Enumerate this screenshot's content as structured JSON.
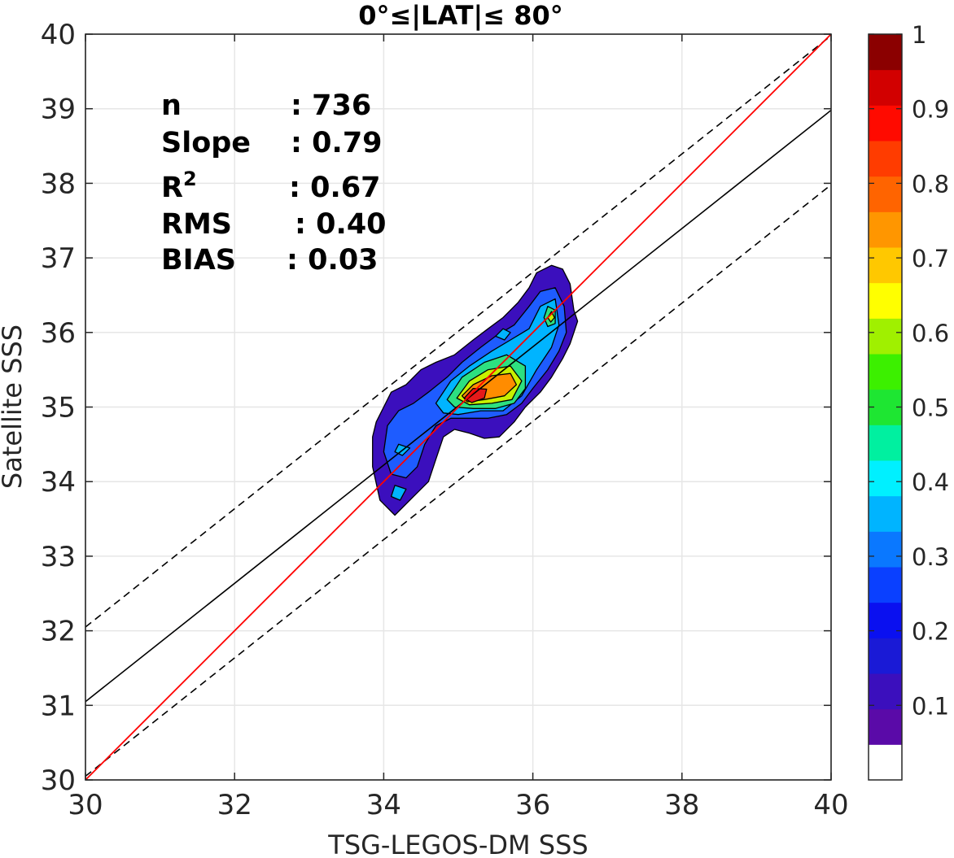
{
  "chart_data": {
    "type": "contourf",
    "title": "0°≤|LAT|≤ 80°",
    "xlabel": "TSG-LEGOS-DM SSS",
    "ylabel": "Satellite SSS",
    "xlim": [
      30,
      40
    ],
    "ylim": [
      30,
      40
    ],
    "xticks": [
      "30",
      "32",
      "34",
      "36",
      "38",
      "40"
    ],
    "yticks": [
      "30",
      "31",
      "32",
      "33",
      "34",
      "35",
      "36",
      "37",
      "38",
      "39",
      "40"
    ],
    "grid": true,
    "stats": [
      {
        "label": "n",
        "value": ": 736"
      },
      {
        "label": "Slope",
        "value": ": 0.79"
      },
      {
        "label": "R",
        "sup": "2",
        "value": ": 0.67"
      },
      {
        "label": "RMS",
        "value": ": 0.40"
      },
      {
        "label": "BIAS",
        "value": ": 0.03"
      }
    ],
    "lines": {
      "one_to_one": {
        "slope": 1,
        "intercept": 0,
        "color": "#ff0000"
      },
      "regression": {
        "x": [
          30,
          40
        ],
        "y": [
          31.05,
          38.98
        ],
        "color": "#000000"
      },
      "offset_upper": {
        "x": [
          30,
          40
        ],
        "y": [
          32.05,
          39.98
        ],
        "style": "dashed"
      },
      "offset_lower": {
        "x": [
          30,
          40
        ],
        "y": [
          30.05,
          37.98
        ],
        "style": "dashed"
      }
    },
    "density_levels": [
      {
        "level": 0.05,
        "color": "#3b0fbd",
        "polygon": [
          [
            33.85,
            34.6
          ],
          [
            33.9,
            34.8
          ],
          [
            34.0,
            35.0
          ],
          [
            34.1,
            35.2
          ],
          [
            34.3,
            35.3
          ],
          [
            34.5,
            35.5
          ],
          [
            34.7,
            35.6
          ],
          [
            34.95,
            35.7
          ],
          [
            35.2,
            35.9
          ],
          [
            35.4,
            36.05
          ],
          [
            35.6,
            36.2
          ],
          [
            35.8,
            36.4
          ],
          [
            35.95,
            36.6
          ],
          [
            36.05,
            36.8
          ],
          [
            36.25,
            36.9
          ],
          [
            36.4,
            36.85
          ],
          [
            36.5,
            36.65
          ],
          [
            36.55,
            36.3
          ],
          [
            36.6,
            36.15
          ],
          [
            36.5,
            35.85
          ],
          [
            36.4,
            35.65
          ],
          [
            36.25,
            35.4
          ],
          [
            36.1,
            35.2
          ],
          [
            35.9,
            35.0
          ],
          [
            35.75,
            34.8
          ],
          [
            35.55,
            34.6
          ],
          [
            35.35,
            34.58
          ],
          [
            35.15,
            34.65
          ],
          [
            34.95,
            34.7
          ],
          [
            34.8,
            34.6
          ],
          [
            34.7,
            34.3
          ],
          [
            34.6,
            34.0
          ],
          [
            34.4,
            33.8
          ],
          [
            34.15,
            33.55
          ],
          [
            33.95,
            33.75
          ],
          [
            33.85,
            34.2
          ]
        ]
      },
      {
        "level": 0.15,
        "color": "#1e5cff",
        "polygon": [
          [
            34.0,
            34.4
          ],
          [
            34.05,
            34.75
          ],
          [
            34.2,
            34.95
          ],
          [
            34.4,
            35.05
          ],
          [
            34.6,
            35.2
          ],
          [
            34.85,
            35.4
          ],
          [
            35.05,
            35.6
          ],
          [
            35.3,
            35.8
          ],
          [
            35.5,
            35.95
          ],
          [
            35.75,
            36.1
          ],
          [
            35.95,
            36.35
          ],
          [
            36.1,
            36.55
          ],
          [
            36.3,
            36.6
          ],
          [
            36.42,
            36.35
          ],
          [
            36.45,
            36.0
          ],
          [
            36.35,
            35.75
          ],
          [
            36.2,
            35.5
          ],
          [
            36.0,
            35.25
          ],
          [
            35.85,
            35.05
          ],
          [
            35.65,
            34.9
          ],
          [
            35.4,
            34.85
          ],
          [
            35.15,
            34.85
          ],
          [
            34.9,
            34.85
          ],
          [
            34.7,
            34.75
          ],
          [
            34.55,
            34.5
          ],
          [
            34.45,
            34.2
          ],
          [
            34.3,
            34.05
          ],
          [
            34.1,
            34.1
          ]
        ]
      },
      {
        "level": 0.3,
        "color": "#00b4ff",
        "polygon": [
          [
            34.7,
            35.05
          ],
          [
            34.9,
            35.35
          ],
          [
            35.15,
            35.55
          ],
          [
            35.45,
            35.75
          ],
          [
            35.7,
            35.9
          ],
          [
            35.95,
            36.05
          ],
          [
            36.1,
            36.35
          ],
          [
            36.3,
            36.45
          ],
          [
            36.35,
            36.1
          ],
          [
            36.25,
            35.8
          ],
          [
            36.05,
            35.5
          ],
          [
            35.85,
            35.15
          ],
          [
            35.6,
            34.95
          ],
          [
            35.3,
            34.95
          ],
          [
            35.0,
            34.9
          ],
          [
            34.8,
            34.92
          ]
        ]
      },
      {
        "level": 0.45,
        "color": "#2de080",
        "polygon": [
          [
            34.85,
            35.1
          ],
          [
            35.05,
            35.4
          ],
          [
            35.35,
            35.6
          ],
          [
            35.65,
            35.7
          ],
          [
            35.9,
            35.55
          ],
          [
            35.9,
            35.25
          ],
          [
            35.75,
            35.05
          ],
          [
            35.5,
            34.98
          ],
          [
            35.2,
            34.98
          ],
          [
            34.95,
            35.0
          ]
        ]
      },
      {
        "level": 0.6,
        "color": "#c8f000",
        "polygon": [
          [
            34.98,
            35.12
          ],
          [
            35.15,
            35.35
          ],
          [
            35.4,
            35.5
          ],
          [
            35.7,
            35.55
          ],
          [
            35.85,
            35.35
          ],
          [
            35.72,
            35.1
          ],
          [
            35.45,
            35.05
          ],
          [
            35.15,
            35.03
          ]
        ]
      },
      {
        "level": 0.75,
        "color": "#ff8c00",
        "polygon": [
          [
            35.05,
            35.15
          ],
          [
            35.2,
            35.3
          ],
          [
            35.45,
            35.42
          ],
          [
            35.7,
            35.45
          ],
          [
            35.78,
            35.3
          ],
          [
            35.62,
            35.15
          ],
          [
            35.35,
            35.1
          ],
          [
            35.12,
            35.07
          ]
        ]
      },
      {
        "level": 0.9,
        "color": "#e41a1a",
        "polygon": [
          [
            35.08,
            35.12
          ],
          [
            35.2,
            35.25
          ],
          [
            35.38,
            35.24
          ],
          [
            35.35,
            35.12
          ],
          [
            35.18,
            35.06
          ]
        ]
      },
      {
        "level": 0.45,
        "color": "#2de080",
        "polygon": [
          [
            36.15,
            36.2
          ],
          [
            36.2,
            36.35
          ],
          [
            36.3,
            36.3
          ],
          [
            36.3,
            36.12
          ],
          [
            36.2,
            36.08
          ]
        ]
      },
      {
        "level": 0.6,
        "color": "#c8f000",
        "polygon": [
          [
            36.2,
            36.2
          ],
          [
            36.25,
            36.28
          ],
          [
            36.29,
            36.2
          ],
          [
            36.24,
            36.14
          ]
        ]
      },
      {
        "level": 0.3,
        "color": "#00b4ff",
        "polygon": [
          [
            34.1,
            33.8
          ],
          [
            34.15,
            33.95
          ],
          [
            34.3,
            33.9
          ],
          [
            34.22,
            33.75
          ]
        ]
      },
      {
        "level": 0.3,
        "color": "#00b4ff",
        "polygon": [
          [
            34.15,
            34.4
          ],
          [
            34.2,
            34.5
          ],
          [
            34.35,
            34.45
          ],
          [
            34.25,
            34.35
          ]
        ]
      },
      {
        "level": 0.3,
        "color": "#00b4ff",
        "polygon": [
          [
            35.5,
            35.95
          ],
          [
            35.6,
            36.05
          ],
          [
            35.7,
            36.0
          ],
          [
            35.62,
            35.9
          ]
        ]
      }
    ],
    "colorbar": {
      "ticks": [
        "0.1",
        "0.2",
        "0.3",
        "0.4",
        "0.5",
        "0.6",
        "0.7",
        "0.8",
        "0.9",
        "1"
      ],
      "colors": [
        "#ffffff",
        "#5a0aa8",
        "#3b0fbd",
        "#1a1ad6",
        "#0a10f0",
        "#0a40ff",
        "#0a78ff",
        "#00b4ff",
        "#00f0ff",
        "#00f0a0",
        "#1ee632",
        "#3cf000",
        "#a0f000",
        "#ffff00",
        "#ffc800",
        "#ff9600",
        "#ff6400",
        "#ff3c00",
        "#ff0a00",
        "#d20000",
        "#8b0000"
      ]
    }
  }
}
